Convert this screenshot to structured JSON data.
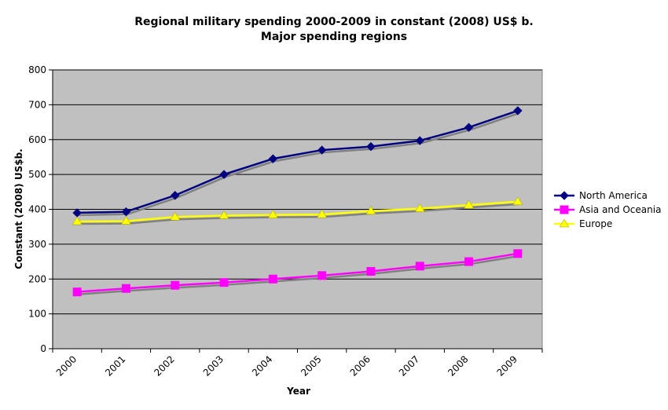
{
  "chart_data": {
    "type": "line",
    "title": "Regional military spending 2000-2009 in constant (2008) US$ b.",
    "subtitle": "Major spending regions",
    "xlabel": "Year",
    "ylabel": "Constant (2008) US$b.",
    "x": [
      "2000",
      "2001",
      "2002",
      "2003",
      "2004",
      "2005",
      "2006",
      "2007",
      "2008",
      "2009"
    ],
    "ylim": [
      0,
      800
    ],
    "yticks": [
      0,
      100,
      200,
      300,
      400,
      500,
      600,
      700,
      800
    ],
    "grid": true,
    "legend": "right",
    "plot_background": "#c0c0c0",
    "series": [
      {
        "name": "North America",
        "color": "#000080",
        "marker": "diamond",
        "values": [
          390,
          393,
          440,
          500,
          545,
          570,
          580,
          597,
          635,
          683
        ]
      },
      {
        "name": "Asia and Oceania",
        "color": "#ff00ff",
        "marker": "square",
        "values": [
          163,
          173,
          182,
          190,
          200,
          210,
          222,
          237,
          250,
          273
        ]
      },
      {
        "name": "Europe",
        "color": "#ffff00",
        "marker": "triangle",
        "values": [
          365,
          366,
          378,
          382,
          384,
          385,
          395,
          402,
          412,
          422
        ]
      }
    ]
  }
}
